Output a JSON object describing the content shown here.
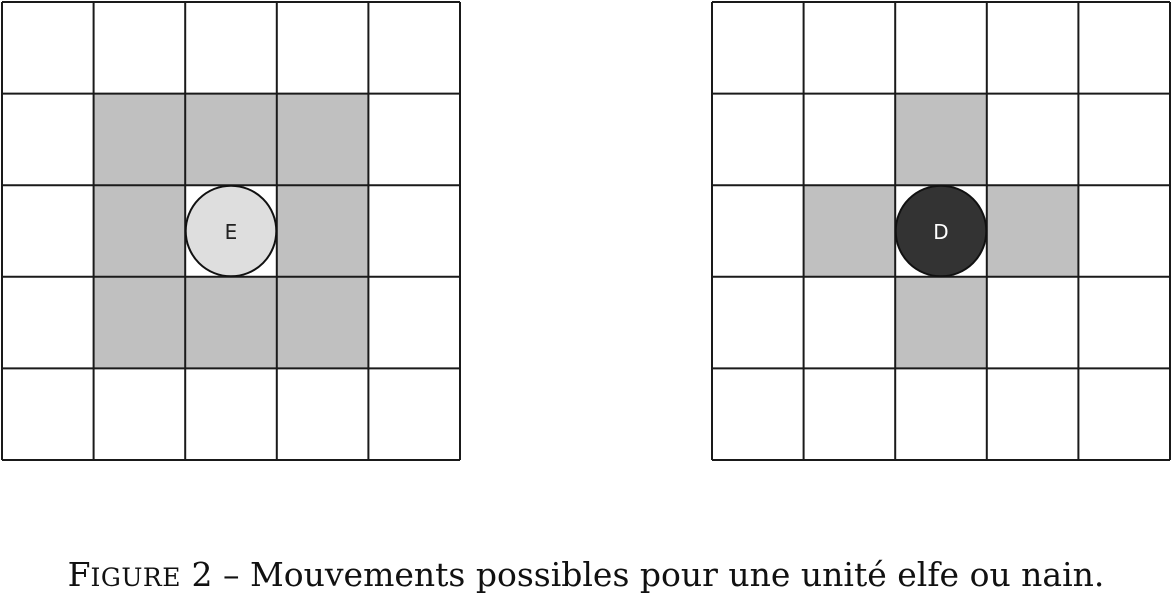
{
  "boards": [
    {
      "id": "elf",
      "rows": 5,
      "cols": 5,
      "unit": {
        "letter": "E",
        "row": 2,
        "col": 2,
        "fill": "#dedede",
        "text_color": "#222222"
      },
      "highlighted": [
        [
          1,
          1
        ],
        [
          1,
          2
        ],
        [
          1,
          3
        ],
        [
          2,
          1
        ],
        [
          2,
          3
        ],
        [
          3,
          1
        ],
        [
          3,
          2
        ],
        [
          3,
          3
        ]
      ],
      "highlight_color": "#c0c0c0"
    },
    {
      "id": "dwarf",
      "rows": 5,
      "cols": 5,
      "unit": {
        "letter": "D",
        "row": 2,
        "col": 2,
        "fill": "#333333",
        "text_color": "#ffffff"
      },
      "highlighted": [
        [
          1,
          2
        ],
        [
          2,
          1
        ],
        [
          2,
          3
        ],
        [
          3,
          2
        ]
      ],
      "highlight_color": "#c0c0c0"
    }
  ],
  "caption": {
    "label_first": "F",
    "label_rest": "IGURE",
    "number": "2",
    "separator": "–",
    "text": "Mouvements possibles pour une unité elfe ou nain."
  }
}
